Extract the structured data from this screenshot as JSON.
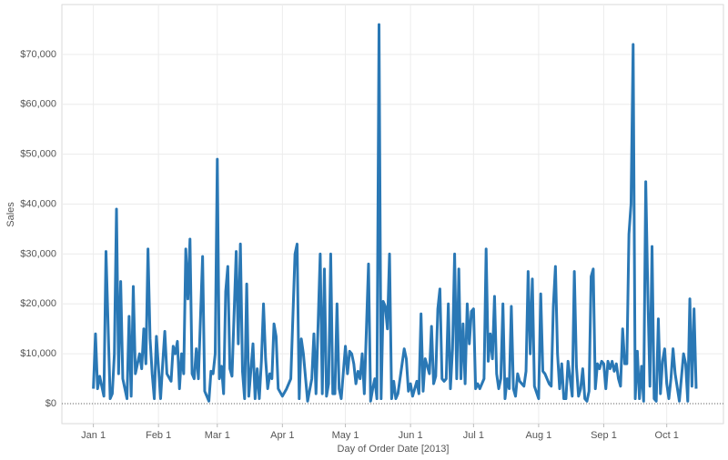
{
  "chart_data": {
    "type": "line",
    "x_label": "Day of Order Date [2013]",
    "y_label": "Sales",
    "color": "#2a78b5",
    "grid": true,
    "xlim": [
      "2012-12-17",
      "2013-10-28"
    ],
    "xticks": [
      {
        "value": "2013-01-01",
        "label": "Jan 1"
      },
      {
        "value": "2013-02-01",
        "label": "Feb 1"
      },
      {
        "value": "2013-03-01",
        "label": "Mar 1"
      },
      {
        "value": "2013-04-01",
        "label": "Apr 1"
      },
      {
        "value": "2013-05-01",
        "label": "May 1"
      },
      {
        "value": "2013-06-01",
        "label": "Jun 1"
      },
      {
        "value": "2013-07-01",
        "label": "Jul 1"
      },
      {
        "value": "2013-08-01",
        "label": "Aug 1"
      },
      {
        "value": "2013-09-01",
        "label": "Sep 1"
      },
      {
        "value": "2013-10-01",
        "label": "Oct 1"
      }
    ],
    "ylim": [
      -4000,
      80000
    ],
    "yticks": [
      {
        "value": 0,
        "label": "$0"
      },
      {
        "value": 10000,
        "label": "$10,000"
      },
      {
        "value": 20000,
        "label": "$20,000"
      },
      {
        "value": 30000,
        "label": "$30,000"
      },
      {
        "value": 40000,
        "label": "$40,000"
      },
      {
        "value": 50000,
        "label": "$50,000"
      },
      {
        "value": 60000,
        "label": "$60,000"
      },
      {
        "value": 70000,
        "label": "$70,000"
      }
    ],
    "x": [
      "2013-01-01",
      "2013-01-02",
      "2013-01-03",
      "2013-01-04",
      "2013-01-06",
      "2013-01-07",
      "2013-01-09",
      "2013-01-10",
      "2013-01-11",
      "2013-01-12",
      "2013-01-13",
      "2013-01-14",
      "2013-01-15",
      "2013-01-17",
      "2013-01-18",
      "2013-01-19",
      "2013-01-20",
      "2013-01-21",
      "2013-01-23",
      "2013-01-24",
      "2013-01-25",
      "2013-01-26",
      "2013-01-27",
      "2013-01-28",
      "2013-01-29",
      "2013-01-30",
      "2013-01-31",
      "2013-02-02",
      "2013-02-03",
      "2013-02-04",
      "2013-02-05",
      "2013-02-07",
      "2013-02-08",
      "2013-02-09",
      "2013-02-10",
      "2013-02-11",
      "2013-02-12",
      "2013-02-13",
      "2013-02-14",
      "2013-02-15",
      "2013-02-16",
      "2013-02-17",
      "2013-02-18",
      "2013-02-19",
      "2013-02-20",
      "2013-02-22",
      "2013-02-23",
      "2013-02-25",
      "2013-02-26",
      "2013-02-27",
      "2013-02-28",
      "2013-03-01",
      "2013-03-02",
      "2013-03-03",
      "2013-03-04",
      "2013-03-05",
      "2013-03-06",
      "2013-03-07",
      "2013-03-08",
      "2013-03-10",
      "2013-03-11",
      "2013-03-12",
      "2013-03-13",
      "2013-03-14",
      "2013-03-15",
      "2013-03-16",
      "2013-03-18",
      "2013-03-19",
      "2013-03-20",
      "2013-03-21",
      "2013-03-22",
      "2013-03-23",
      "2013-03-24",
      "2013-03-25",
      "2013-03-26",
      "2013-03-27",
      "2013-03-28",
      "2013-03-29",
      "2013-03-30",
      "2013-04-01",
      "2013-04-03",
      "2013-04-05",
      "2013-04-07",
      "2013-04-08",
      "2013-04-09",
      "2013-04-10",
      "2013-04-11",
      "2013-04-13",
      "2013-04-15",
      "2013-04-16",
      "2013-04-17",
      "2013-04-19",
      "2013-04-20",
      "2013-04-21",
      "2013-04-22",
      "2013-04-23",
      "2013-04-24",
      "2013-04-25",
      "2013-04-26",
      "2013-04-27",
      "2013-04-28",
      "2013-04-29",
      "2013-05-01",
      "2013-05-02",
      "2013-05-03",
      "2013-05-04",
      "2013-05-05",
      "2013-05-06",
      "2013-05-07",
      "2013-05-08",
      "2013-05-09",
      "2013-05-10",
      "2013-05-12",
      "2013-05-13",
      "2013-05-14",
      "2013-05-15",
      "2013-05-16",
      "2013-05-17",
      "2013-05-18",
      "2013-05-19",
      "2013-05-20",
      "2013-05-21",
      "2013-05-22",
      "2013-05-23",
      "2013-05-24",
      "2013-05-25",
      "2013-05-26",
      "2013-05-28",
      "2013-05-29",
      "2013-05-30",
      "2013-05-31",
      "2013-06-01",
      "2013-06-02",
      "2013-06-04",
      "2013-06-05",
      "2013-06-06",
      "2013-06-07",
      "2013-06-08",
      "2013-06-09",
      "2013-06-10",
      "2013-06-11",
      "2013-06-12",
      "2013-06-13",
      "2013-06-14",
      "2013-06-15",
      "2013-06-16",
      "2013-06-17",
      "2013-06-18",
      "2013-06-19",
      "2013-06-20",
      "2013-06-21",
      "2013-06-22",
      "2013-06-23",
      "2013-06-24",
      "2013-06-25",
      "2013-06-26",
      "2013-06-27",
      "2013-06-28",
      "2013-06-29",
      "2013-06-30",
      "2013-07-01",
      "2013-07-02",
      "2013-07-03",
      "2013-07-04",
      "2013-07-06",
      "2013-07-07",
      "2013-07-08",
      "2013-07-09",
      "2013-07-10",
      "2013-07-11",
      "2013-07-12",
      "2013-07-13",
      "2013-07-14",
      "2013-07-15",
      "2013-07-16",
      "2013-07-17",
      "2013-07-18",
      "2013-07-19",
      "2013-07-20",
      "2013-07-21",
      "2013-07-22",
      "2013-07-23",
      "2013-07-24",
      "2013-07-25",
      "2013-07-26",
      "2013-07-27",
      "2013-07-28",
      "2013-07-29",
      "2013-07-30",
      "2013-08-01",
      "2013-08-02",
      "2013-08-03",
      "2013-08-04",
      "2013-08-05",
      "2013-08-06",
      "2013-08-07",
      "2013-08-08",
      "2013-08-09",
      "2013-08-10",
      "2013-08-11",
      "2013-08-12",
      "2013-08-13",
      "2013-08-14",
      "2013-08-15",
      "2013-08-16",
      "2013-08-17",
      "2013-08-18",
      "2013-08-19",
      "2013-08-20",
      "2013-08-21",
      "2013-08-22",
      "2013-08-23",
      "2013-08-24",
      "2013-08-25",
      "2013-08-26",
      "2013-08-27",
      "2013-08-28",
      "2013-08-29",
      "2013-08-30",
      "2013-08-31",
      "2013-09-01",
      "2013-09-02",
      "2013-09-03",
      "2013-09-04",
      "2013-09-05",
      "2013-09-06",
      "2013-09-07",
      "2013-09-08",
      "2013-09-09",
      "2013-09-10",
      "2013-09-11",
      "2013-09-12",
      "2013-09-13",
      "2013-09-14",
      "2013-09-15",
      "2013-09-16",
      "2013-09-17",
      "2013-09-18",
      "2013-09-19",
      "2013-09-20",
      "2013-09-21",
      "2013-09-22",
      "2013-09-23",
      "2013-09-24",
      "2013-09-25",
      "2013-09-26",
      "2013-09-27",
      "2013-09-28",
      "2013-09-29",
      "2013-09-30",
      "2013-10-01",
      "2013-10-02",
      "2013-10-03",
      "2013-10-04",
      "2013-10-05",
      "2013-10-07",
      "2013-10-09",
      "2013-10-10",
      "2013-10-11",
      "2013-10-12",
      "2013-10-13",
      "2013-10-14",
      "2013-10-15"
    ],
    "values": [
      3000,
      14000,
      3000,
      5500,
      1500,
      30500,
      1000,
      2000,
      10000,
      39000,
      6000,
      24500,
      5000,
      1000,
      17500,
      1500,
      23500,
      6000,
      10000,
      7000,
      15000,
      8000,
      31000,
      13000,
      6000,
      1000,
      13500,
      1000,
      8000,
      14500,
      6000,
      4500,
      11500,
      10000,
      12500,
      3000,
      10000,
      6000,
      31000,
      21000,
      33000,
      6000,
      5000,
      11000,
      5000,
      29500,
      2500,
      500,
      6500,
      6000,
      10000,
      49000,
      5000,
      7500,
      2000,
      22500,
      27500,
      7000,
      5500,
      30500,
      12000,
      32000,
      6500,
      1000,
      24000,
      1500,
      12000,
      1000,
      7000,
      1000,
      8500,
      20000,
      9000,
      3000,
      6000,
      5000,
      16000,
      13500,
      3000,
      1500,
      3000,
      5000,
      30000,
      32000,
      1000,
      13000,
      10000,
      500,
      5000,
      14000,
      2000,
      30000,
      2000,
      27000,
      1500,
      4000,
      30000,
      2000,
      2000,
      20000,
      3000,
      1000,
      11500,
      6000,
      10500,
      10000,
      8000,
      4000,
      6500,
      5000,
      10000,
      2000,
      28000,
      500,
      3000,
      5000,
      1000,
      76000,
      1000,
      20500,
      19500,
      15000,
      30000,
      1000,
      4500,
      1000,
      2000,
      8000,
      11000,
      9000,
      2500,
      4000,
      1500,
      4500,
      2000,
      18000,
      2500,
      9000,
      7500,
      6000,
      15500,
      4000,
      5500,
      19000,
      23000,
      5000,
      4500,
      5000,
      20000,
      3000,
      11000,
      30000,
      5000,
      27000,
      5000,
      16000,
      4000,
      20000,
      12000,
      18500,
      19000,
      3000,
      4000,
      3000,
      5000,
      31000,
      8500,
      14000,
      9000,
      21500,
      6000,
      3000,
      5000,
      20000,
      1000,
      5000,
      3000,
      19500,
      3000,
      1500,
      6000,
      4500,
      4000,
      3500,
      6500,
      26500,
      10000,
      25000,
      3500,
      1000,
      22000,
      6500,
      6000,
      5000,
      4000,
      3500,
      19500,
      27500,
      10000,
      3000,
      8000,
      1000,
      1000,
      8500,
      5000,
      1500,
      26500,
      7500,
      1500,
      3000,
      7000,
      1000,
      500,
      2500,
      25500,
      27000,
      3000,
      8000,
      7000,
      8500,
      8000,
      3000,
      8500,
      7000,
      8500,
      6500,
      8000,
      5000,
      3500,
      15000,
      8000,
      8000,
      34000,
      40000,
      72000,
      1000,
      10500,
      1000,
      7500,
      500,
      44500,
      22000,
      3500,
      31500,
      1000,
      500,
      17000,
      2000,
      8500,
      11000,
      4000,
      1000,
      5000,
      11000,
      6000,
      500,
      10000,
      8000,
      500,
      21000,
      3500,
      19000,
      3000
    ]
  }
}
